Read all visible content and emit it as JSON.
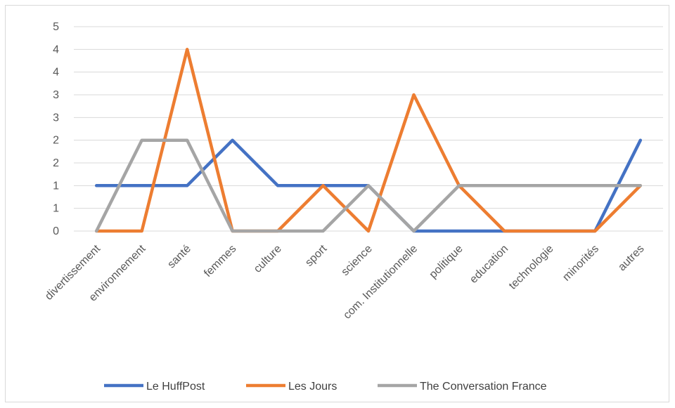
{
  "chart_data": {
    "type": "line",
    "categories": [
      "divertissement",
      "environnement",
      "santé",
      "femmes",
      "culture",
      "sport",
      "science",
      "com. Institutionnelle",
      "politique",
      "education",
      "technologie",
      "minorités",
      "autres"
    ],
    "y_tick_labels": [
      "0",
      "1",
      "1",
      "2",
      "2",
      "3",
      "3",
      "4",
      "4",
      "5"
    ],
    "ylim": [
      0,
      4.5
    ],
    "grid": true,
    "legend_position": "bottom",
    "series": [
      {
        "name": "Le HuffPost",
        "color": "#4472c4",
        "values": [
          1,
          1,
          1,
          2,
          1,
          1,
          1,
          0,
          0,
          0,
          0,
          0,
          2
        ]
      },
      {
        "name": "Les Jours",
        "color": "#ed7d31",
        "values": [
          0,
          0,
          4,
          0,
          0,
          1,
          0,
          3,
          1,
          0,
          0,
          0,
          1
        ]
      },
      {
        "name": "The Conversation France",
        "color": "#a5a5a5",
        "values": [
          0,
          2,
          2,
          0,
          0,
          0,
          1,
          0,
          1,
          1,
          1,
          1,
          1
        ]
      }
    ]
  }
}
